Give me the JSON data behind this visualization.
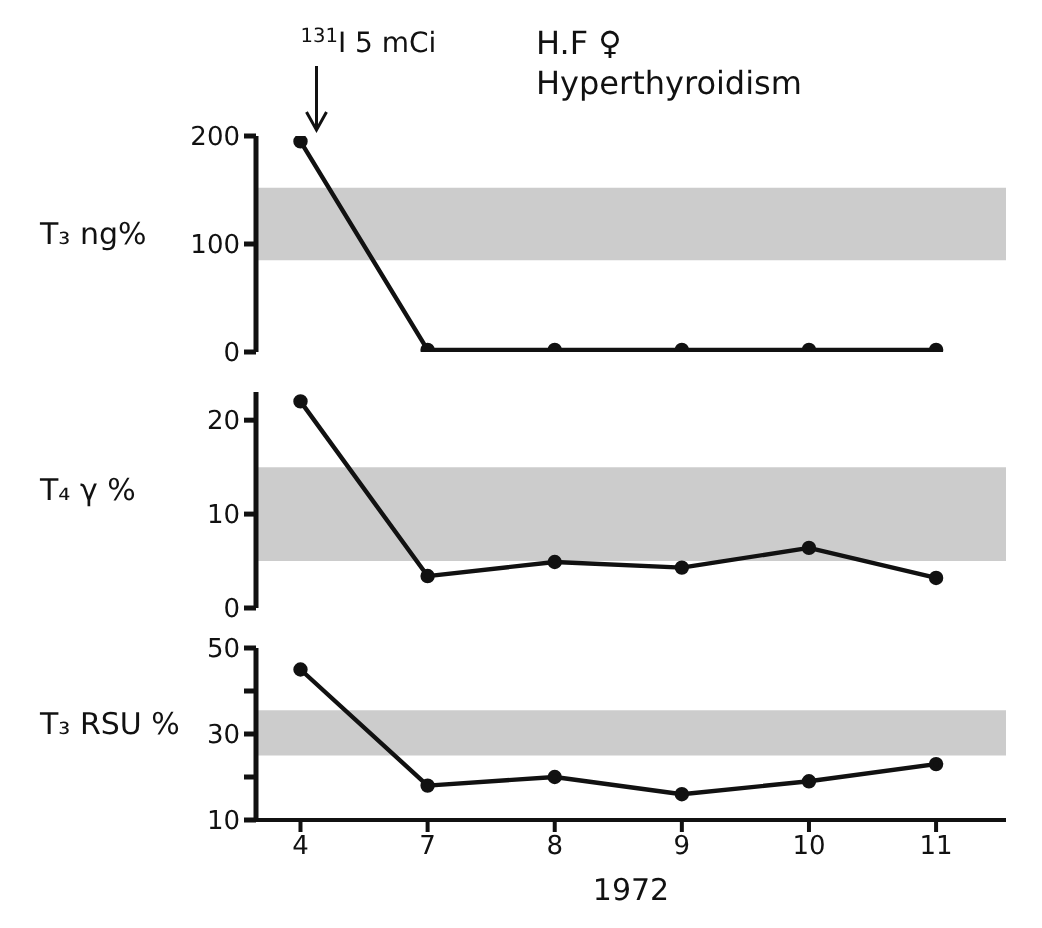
{
  "chart_data": [
    {
      "type": "line",
      "title": "H.F ♀",
      "subtitle": "Hyperthyroidism",
      "ylabel": "T₃ ng%",
      "categories": [
        "4",
        "7",
        "8",
        "9",
        "10",
        "11"
      ],
      "series": [
        {
          "color": "#111111",
          "values": [
            195,
            2,
            2,
            2,
            2,
            2
          ]
        }
      ],
      "ylim": [
        0,
        200
      ],
      "yticks": [
        0,
        100,
        200
      ],
      "bands": [
        {
          "axis": "y",
          "from": 85,
          "to": 152,
          "color": "#cccccc"
        }
      ],
      "annotations": [
        {
          "text": "$^{131}$I 5 mCi",
          "x": "4",
          "y": 200
        }
      ],
      "marker": "circle",
      "tick_labels": "y"
    },
    {
      "type": "line",
      "ylabel": "T₄ γ %",
      "categories": [
        "4",
        "7",
        "8",
        "9",
        "10",
        "11"
      ],
      "series": [
        {
          "color": "#111111",
          "values": [
            22,
            3.4,
            4.9,
            4.3,
            6.4,
            3.2
          ]
        }
      ],
      "ylim": [
        0,
        23
      ],
      "yticks": [
        0,
        10,
        20
      ],
      "bands": [
        {
          "axis": "y",
          "from": 5,
          "to": 15,
          "color": "#cccccc"
        }
      ],
      "marker": "circle",
      "tick_labels": "y"
    },
    {
      "type": "line",
      "ylabel": "T₃ RSU %",
      "xlabel": "1972",
      "categories": [
        "4",
        "7",
        "8",
        "9",
        "10",
        "11"
      ],
      "series": [
        {
          "color": "#111111",
          "values": [
            45,
            18,
            20,
            16,
            19,
            23
          ]
        }
      ],
      "ylim": [
        10,
        50
      ],
      "yticks": [
        10,
        {
          "value": 20,
          "label": null
        },
        30,
        {
          "value": 40,
          "label": null
        },
        50
      ],
      "bands": [
        {
          "axis": "y",
          "from": 25,
          "to": 35.5,
          "color": "#cccccc"
        }
      ],
      "marker": "circle"
    }
  ]
}
